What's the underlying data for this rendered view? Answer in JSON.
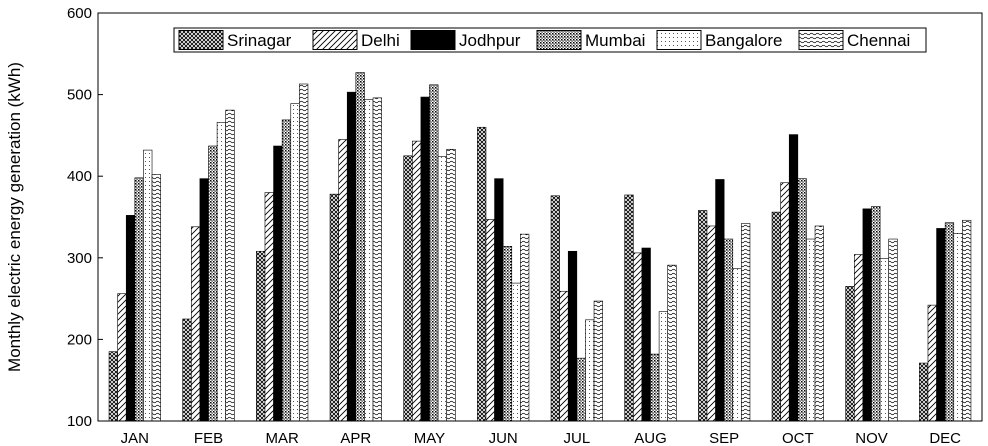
{
  "chart_data": {
    "type": "bar",
    "title": "",
    "xlabel": "",
    "ylabel": "Monthly electric energy generation (kWh)",
    "ylim": [
      100,
      600
    ],
    "yticks": [
      100,
      200,
      300,
      400,
      500,
      600
    ],
    "grid": false,
    "legend_position": "top-center",
    "categories": [
      "JAN",
      "FEB",
      "MAR",
      "APR",
      "MAY",
      "JUN",
      "JUL",
      "AUG",
      "SEP",
      "OCT",
      "NOV",
      "DEC"
    ],
    "series": [
      {
        "name": "Srinagar",
        "pattern": "crosshatch",
        "values": [
          185,
          225,
          308,
          378,
          425,
          460,
          376,
          377,
          358,
          356,
          265,
          171
        ]
      },
      {
        "name": "Delhi",
        "pattern": "diagonal",
        "values": [
          256,
          338,
          380,
          445,
          443,
          347,
          259,
          306,
          339,
          392,
          304,
          242
        ]
      },
      {
        "name": "Jodhpur",
        "pattern": "solid",
        "values": [
          352,
          397,
          437,
          503,
          497,
          397,
          308,
          312,
          396,
          451,
          360,
          336
        ]
      },
      {
        "name": "Mumbai",
        "pattern": "dense-dots",
        "values": [
          398,
          437,
          469,
          527,
          512,
          314,
          177,
          182,
          323,
          397,
          363,
          343
        ]
      },
      {
        "name": "Bangalore",
        "pattern": "light-dots",
        "values": [
          432,
          466,
          489,
          494,
          424,
          269,
          224,
          234,
          287,
          323,
          299,
          330
        ]
      },
      {
        "name": "Chennai",
        "pattern": "waves",
        "values": [
          402,
          481,
          513,
          496,
          433,
          329,
          247,
          291,
          342,
          339,
          323,
          346
        ]
      }
    ],
    "colors": {
      "stroke": "#000000",
      "solid": "#000000",
      "background": "#ffffff"
    }
  }
}
